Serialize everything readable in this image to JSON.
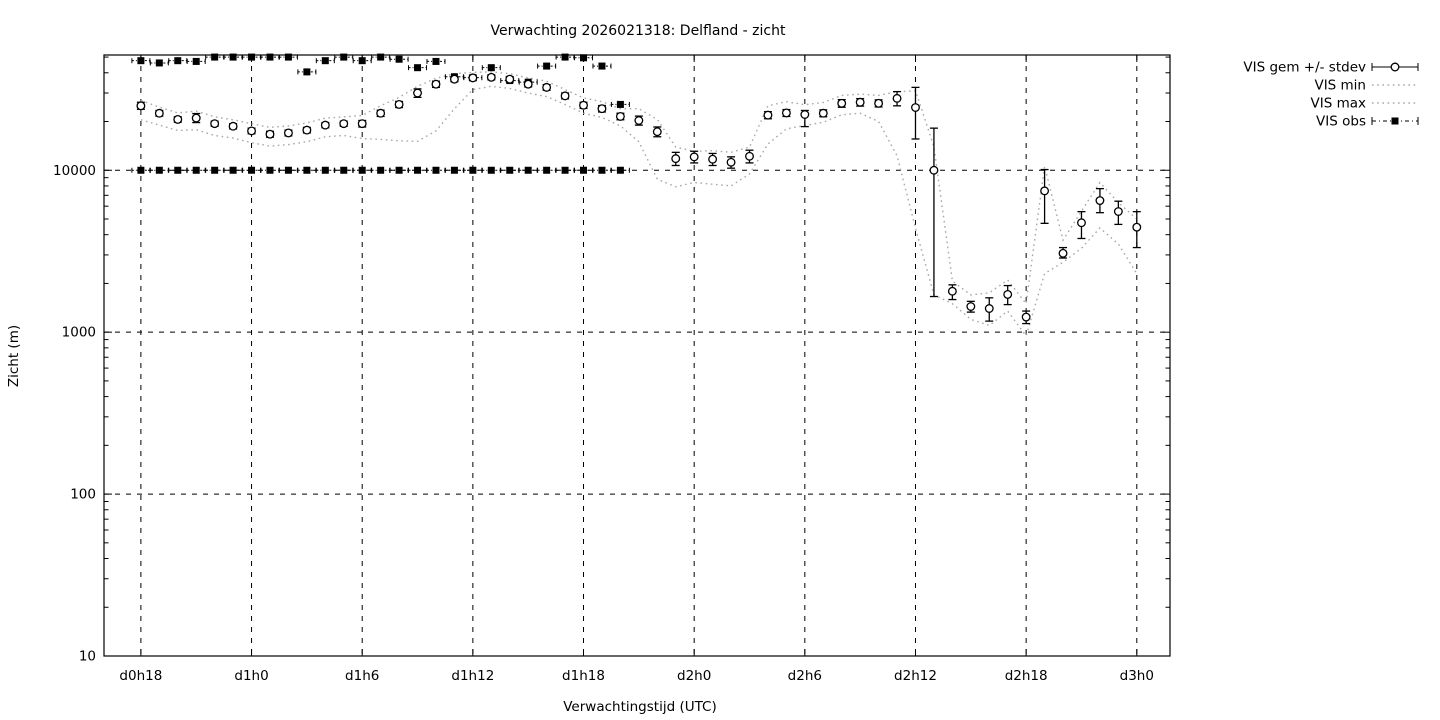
{
  "page": {
    "background_color": "#ffffff",
    "foreground_color": "#000000",
    "envelope_color": "#a8a8a8"
  },
  "chart_data": {
    "type": "line",
    "title": "Verwachting 2026021318: Delfland - zicht",
    "xlabel": "Verwachtingstijd (UTC)",
    "ylabel": "Zicht (m)",
    "y_scale": "log",
    "y_range": [
      10,
      51500
    ],
    "y_tick_values": [
      10,
      100,
      1000,
      10000
    ],
    "x_range_hours": [
      -2,
      55.8
    ],
    "x_ticks": [
      {
        "hour": 0,
        "label": "d0h18"
      },
      {
        "hour": 6,
        "label": "d1h0"
      },
      {
        "hour": 12,
        "label": "d1h6"
      },
      {
        "hour": 18,
        "label": "d1h12"
      },
      {
        "hour": 24,
        "label": "d1h18"
      },
      {
        "hour": 30,
        "label": "d2h0"
      },
      {
        "hour": 36,
        "label": "d2h6"
      },
      {
        "hour": 42,
        "label": "d2h12"
      },
      {
        "hour": 48,
        "label": "d2h18"
      },
      {
        "hour": 54,
        "label": "d3h0"
      }
    ],
    "grid": "dashed",
    "legend_position": "outside-right",
    "legend": [
      {
        "label": "VIS gem +/- stdev",
        "style": "errorbar-circle",
        "color": "#000000"
      },
      {
        "label": "VIS min",
        "style": "dotted",
        "color": "#a8a8a8"
      },
      {
        "label": "VIS max",
        "style": "dotted",
        "color": "#a8a8a8"
      },
      {
        "label": "VIS obs",
        "style": "dashdot-square",
        "color": "#000000"
      }
    ],
    "series": {
      "vis_gem": {
        "name": "VIS gem +/- stdev",
        "marker": "open-circle",
        "point_format": [
          "hour",
          "value_m",
          "stdev_low_m",
          "stdev_high_m"
        ],
        "points": [
          [
            0,
            25000,
            23800,
            26300
          ],
          [
            1,
            22500,
            21600,
            23400
          ],
          [
            2,
            20600,
            19800,
            21400
          ],
          [
            3,
            21000,
            19700,
            22400
          ],
          [
            4,
            19400,
            18700,
            20100
          ],
          [
            5,
            18700,
            18000,
            19400
          ],
          [
            6,
            17500,
            16800,
            18200
          ],
          [
            7,
            16700,
            16000,
            17400
          ],
          [
            8,
            17000,
            16300,
            17700
          ],
          [
            9,
            17700,
            17000,
            18400
          ],
          [
            10,
            19000,
            18300,
            19700
          ],
          [
            11,
            19400,
            18700,
            20100
          ],
          [
            12,
            19400,
            18500,
            20300
          ],
          [
            13,
            22500,
            21500,
            23500
          ],
          [
            14,
            25500,
            24400,
            26600
          ],
          [
            15,
            30000,
            28200,
            31800
          ],
          [
            16,
            34000,
            32500,
            35500
          ],
          [
            17,
            36500,
            35200,
            37800
          ],
          [
            18,
            37200,
            35800,
            38600
          ],
          [
            19,
            37500,
            36200,
            38800
          ],
          [
            20,
            36500,
            35100,
            37900
          ],
          [
            21,
            34000,
            32700,
            35300
          ],
          [
            22,
            32500,
            31200,
            33800
          ],
          [
            23,
            28800,
            27600,
            30000
          ],
          [
            24,
            25200,
            24100,
            26300
          ],
          [
            25,
            24000,
            22900,
            25100
          ],
          [
            26,
            21500,
            20500,
            22500
          ],
          [
            27,
            20300,
            19000,
            21600
          ],
          [
            28,
            17300,
            16100,
            18500
          ],
          [
            29,
            11800,
            10700,
            12900
          ],
          [
            30,
            12100,
            11100,
            13100
          ],
          [
            31,
            11700,
            10700,
            12700
          ],
          [
            32,
            11200,
            10300,
            12100
          ],
          [
            33,
            12200,
            11100,
            13300
          ],
          [
            34,
            21900,
            20800,
            23000
          ],
          [
            35,
            22600,
            21500,
            23700
          ],
          [
            36,
            22100,
            18600,
            23400
          ],
          [
            37,
            22500,
            21400,
            23600
          ],
          [
            38,
            25900,
            24500,
            27300
          ],
          [
            39,
            26300,
            24900,
            27700
          ],
          [
            40,
            25900,
            24600,
            27200
          ],
          [
            41,
            27800,
            25000,
            30600
          ],
          [
            42,
            24400,
            15600,
            32500
          ],
          [
            43,
            10000,
            1660,
            18200
          ],
          [
            44,
            1790,
            1590,
            1960
          ],
          [
            45,
            1440,
            1330,
            1550
          ],
          [
            46,
            1400,
            1170,
            1630
          ],
          [
            47,
            1710,
            1480,
            1940
          ],
          [
            48,
            1240,
            1130,
            1350
          ],
          [
            49,
            7460,
            4700,
            10100
          ],
          [
            50,
            3070,
            2870,
            3330
          ],
          [
            51,
            4740,
            3790,
            5550
          ],
          [
            52,
            6500,
            5470,
            7700
          ],
          [
            53,
            5560,
            4630,
            6440
          ],
          [
            54,
            4450,
            3330,
            5550
          ]
        ]
      },
      "vis_min": {
        "name": "VIS min",
        "point_format": [
          "hour",
          "value_m"
        ],
        "points": [
          [
            0,
            20500
          ],
          [
            1,
            19000
          ],
          [
            2,
            17600
          ],
          [
            3,
            17800
          ],
          [
            4,
            16400
          ],
          [
            5,
            15800
          ],
          [
            6,
            14800
          ],
          [
            7,
            14100
          ],
          [
            8,
            14400
          ],
          [
            9,
            15000
          ],
          [
            10,
            16100
          ],
          [
            11,
            16400
          ],
          [
            12,
            15700
          ],
          [
            13,
            15500
          ],
          [
            14,
            15200
          ],
          [
            15,
            15100
          ],
          [
            16,
            17500
          ],
          [
            17,
            24000
          ],
          [
            18,
            31500
          ],
          [
            19,
            33000
          ],
          [
            20,
            32000
          ],
          [
            21,
            30000
          ],
          [
            22,
            28500
          ],
          [
            23,
            25500
          ],
          [
            24,
            22500
          ],
          [
            25,
            21200
          ],
          [
            26,
            18800
          ],
          [
            27,
            15000
          ],
          [
            28,
            8800
          ],
          [
            29,
            7900
          ],
          [
            30,
            8400
          ],
          [
            31,
            8200
          ],
          [
            32,
            8000
          ],
          [
            33,
            9500
          ],
          [
            34,
            14500
          ],
          [
            35,
            18000
          ],
          [
            36,
            18900
          ],
          [
            37,
            19800
          ],
          [
            38,
            22000
          ],
          [
            39,
            22500
          ],
          [
            40,
            20000
          ],
          [
            41,
            12300
          ],
          [
            42,
            4400
          ],
          [
            43,
            1700
          ],
          [
            44,
            1500
          ],
          [
            45,
            1200
          ],
          [
            46,
            1100
          ],
          [
            47,
            1350
          ],
          [
            48,
            950
          ],
          [
            49,
            2300
          ],
          [
            50,
            2700
          ],
          [
            51,
            3300
          ],
          [
            52,
            4400
          ],
          [
            53,
            3500
          ],
          [
            54,
            2300
          ]
        ]
      },
      "vis_max": {
        "name": "VIS max",
        "point_format": [
          "hour",
          "value_m"
        ],
        "points": [
          [
            0,
            27000
          ],
          [
            1,
            24500
          ],
          [
            2,
            22600
          ],
          [
            3,
            23200
          ],
          [
            4,
            21400
          ],
          [
            5,
            20500
          ],
          [
            6,
            19400
          ],
          [
            7,
            18400
          ],
          [
            8,
            18800
          ],
          [
            9,
            19600
          ],
          [
            10,
            21000
          ],
          [
            11,
            21400
          ],
          [
            12,
            21800
          ],
          [
            13,
            25000
          ],
          [
            14,
            28200
          ],
          [
            15,
            33000
          ],
          [
            16,
            37000
          ],
          [
            17,
            39500
          ],
          [
            18,
            40200
          ],
          [
            19,
            40500
          ],
          [
            20,
            39500
          ],
          [
            21,
            37200
          ],
          [
            22,
            35500
          ],
          [
            23,
            31500
          ],
          [
            24,
            28000
          ],
          [
            25,
            26500
          ],
          [
            26,
            24000
          ],
          [
            27,
            24000
          ],
          [
            28,
            20600
          ],
          [
            29,
            13900
          ],
          [
            30,
            13100
          ],
          [
            31,
            13200
          ],
          [
            32,
            12900
          ],
          [
            33,
            13900
          ],
          [
            34,
            25000
          ],
          [
            35,
            26500
          ],
          [
            36,
            25400
          ],
          [
            37,
            26200
          ],
          [
            38,
            29000
          ],
          [
            39,
            29500
          ],
          [
            40,
            29000
          ],
          [
            41,
            30500
          ],
          [
            42,
            31000
          ],
          [
            43,
            14000
          ],
          [
            44,
            2070
          ],
          [
            45,
            1700
          ],
          [
            46,
            1750
          ],
          [
            47,
            2100
          ],
          [
            48,
            1500
          ],
          [
            49,
            10600
          ],
          [
            50,
            3700
          ],
          [
            51,
            5600
          ],
          [
            52,
            8400
          ],
          [
            53,
            6300
          ],
          [
            54,
            5000
          ]
        ]
      },
      "vis_obs": {
        "name": "VIS obs",
        "marker": "filled-square",
        "point_format": [
          "hour",
          "value_m"
        ],
        "points": [
          [
            0,
            10000
          ],
          [
            0,
            47500
          ],
          [
            1,
            10000
          ],
          [
            1,
            46000
          ],
          [
            2,
            10000
          ],
          [
            2,
            47500
          ],
          [
            3,
            10000
          ],
          [
            3,
            47000
          ],
          [
            4,
            10000
          ],
          [
            4,
            50000
          ],
          [
            5,
            10000
          ],
          [
            5,
            50000
          ],
          [
            6,
            10000
          ],
          [
            6,
            50000
          ],
          [
            7,
            10000
          ],
          [
            7,
            50000
          ],
          [
            8,
            10000
          ],
          [
            8,
            50000
          ],
          [
            9,
            10000
          ],
          [
            9,
            40500
          ],
          [
            10,
            10000
          ],
          [
            10,
            47500
          ],
          [
            11,
            10000
          ],
          [
            11,
            50000
          ],
          [
            12,
            10000
          ],
          [
            12,
            47500
          ],
          [
            13,
            10000
          ],
          [
            13,
            50000
          ],
          [
            14,
            10000
          ],
          [
            14,
            48500
          ],
          [
            15,
            10000
          ],
          [
            15,
            43000
          ],
          [
            16,
            10000
          ],
          [
            16,
            47000
          ],
          [
            17,
            10000
          ],
          [
            17,
            37800
          ],
          [
            18,
            10000
          ],
          [
            18,
            37300
          ],
          [
            19,
            10000
          ],
          [
            19,
            43000
          ],
          [
            20,
            10000
          ],
          [
            20,
            35800
          ],
          [
            21,
            10000
          ],
          [
            21,
            35000
          ],
          [
            22,
            10000
          ],
          [
            22,
            44000
          ],
          [
            23,
            10000
          ],
          [
            23,
            50000
          ],
          [
            24,
            10000
          ],
          [
            24,
            49500
          ],
          [
            25,
            10000
          ],
          [
            25,
            44000
          ],
          [
            26,
            10000
          ],
          [
            26,
            25500
          ]
        ]
      }
    }
  }
}
